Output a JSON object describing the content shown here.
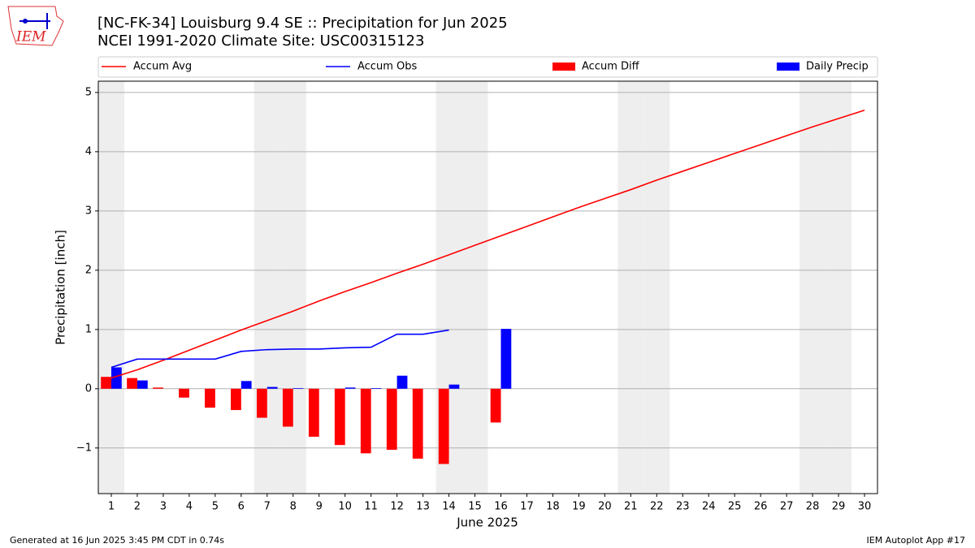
{
  "chart_data": {
    "type": "combo",
    "title": "[NC-FK-34] Louisburg 9.4 SE :: Precipitation for Jun 2025",
    "subtitle": "NCEI 1991-2020 Climate Site: USC00315123",
    "xlabel": "June 2025",
    "ylabel": "Precipitation [inch]",
    "x": [
      1,
      2,
      3,
      4,
      5,
      6,
      7,
      8,
      9,
      10,
      11,
      12,
      13,
      14,
      15,
      16,
      17,
      18,
      19,
      20,
      21,
      22,
      23,
      24,
      25,
      26,
      27,
      28,
      29,
      30
    ],
    "xlim": [
      0.5,
      30.5
    ],
    "xticks": [
      1,
      2,
      3,
      4,
      5,
      6,
      7,
      8,
      9,
      10,
      11,
      12,
      13,
      14,
      15,
      16,
      17,
      18,
      19,
      20,
      21,
      22,
      23,
      24,
      25,
      26,
      27,
      28,
      29,
      30
    ],
    "ylim": [
      -1.77,
      5.19
    ],
    "yticks": [
      {
        "value": -1,
        "label": "−1"
      },
      0,
      1,
      2,
      3,
      4,
      5
    ],
    "grid": true,
    "shaded_days": [
      1,
      7,
      8,
      14,
      15,
      21,
      22,
      28,
      29
    ],
    "series": [
      {
        "name": "Accum Avg",
        "type": "line",
        "color": "#ff0000",
        "values": [
          0.18,
          0.32,
          0.48,
          0.65,
          0.82,
          0.99,
          1.15,
          1.31,
          1.48,
          1.64,
          1.79,
          1.95,
          2.1,
          2.26,
          2.42,
          2.58,
          2.74,
          2.9,
          3.06,
          3.21,
          3.36,
          3.52,
          3.67,
          3.82,
          3.97,
          4.12,
          4.27,
          4.42,
          4.56,
          4.7
        ]
      },
      {
        "name": "Accum Obs",
        "type": "line",
        "color": "#0000ff",
        "values": [
          0.36,
          0.5,
          0.5,
          0.5,
          0.5,
          0.63,
          0.66,
          0.67,
          0.67,
          0.69,
          0.7,
          0.92,
          0.92,
          0.99,
          null,
          null,
          null,
          null,
          null,
          null,
          null,
          null,
          null,
          null,
          null,
          null,
          null,
          null,
          null,
          null
        ]
      },
      {
        "name": "Accum Diff",
        "type": "bar",
        "color": "#ff0000",
        "values": [
          0.2,
          0.18,
          0.02,
          -0.15,
          -0.32,
          -0.36,
          -0.49,
          -0.64,
          -0.81,
          -0.95,
          -1.09,
          -1.03,
          -1.18,
          -1.27,
          null,
          -0.57,
          null,
          null,
          null,
          null,
          null,
          null,
          null,
          null,
          null,
          null,
          null,
          null,
          null,
          null
        ]
      },
      {
        "name": "Daily Precip",
        "type": "bar",
        "color": "#0000ff",
        "values": [
          0.36,
          0.14,
          0,
          0,
          0,
          0.13,
          0.03,
          0.01,
          0,
          0.02,
          0.01,
          0.22,
          0,
          0.07,
          0,
          1.01,
          null,
          null,
          null,
          null,
          null,
          null,
          null,
          null,
          null,
          null,
          null,
          null,
          null,
          null
        ]
      }
    ],
    "logo_text": "IEM",
    "footer_left": "Generated at 16 Jun 2025 3:45 PM CDT in 0.74s",
    "footer_right": "IEM Autoplot App #17"
  }
}
